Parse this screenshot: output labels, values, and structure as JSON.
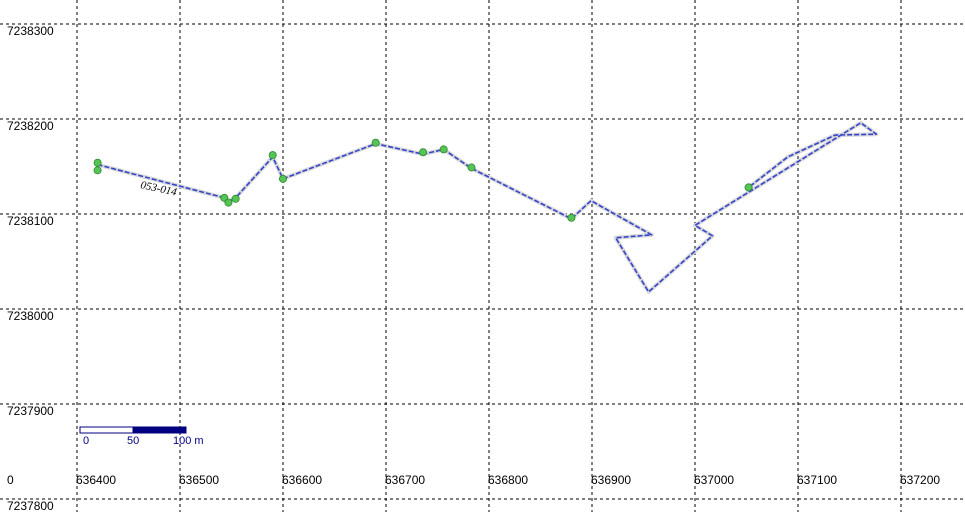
{
  "map": {
    "x_ticks": [
      "636400",
      "636500",
      "636600",
      "636700",
      "636800",
      "636900",
      "637000",
      "637100",
      "637200"
    ],
    "y_ticks": [
      "7238300",
      "7238200",
      "7238100",
      "7238000",
      "7237900",
      "7237800"
    ],
    "origin_label": "0",
    "x_range": [
      636394,
      637242
    ],
    "y_range": [
      7237793,
      7238325
    ],
    "grid": "dashed",
    "colors": {
      "background": "#ffffff",
      "grid": "#000000",
      "track": "#3344cc",
      "track_halo": "#d8d8d8",
      "point": "#55c455",
      "point_outline": "#2e8a2e",
      "scale_bar": "#000080"
    },
    "track": {
      "label": "053-014",
      "path": [
        [
          636420,
          7238152
        ],
        [
          636543,
          7238117
        ],
        [
          636547,
          7238113
        ],
        [
          636554,
          7238117
        ],
        [
          636590,
          7238160
        ],
        [
          636600,
          7238137
        ],
        [
          636690,
          7238174
        ],
        [
          636736,
          7238163
        ],
        [
          636756,
          7238168
        ],
        [
          636783,
          7238148
        ],
        [
          636880,
          7238095
        ],
        [
          636899,
          7238114
        ],
        [
          636958,
          7238078
        ],
        [
          636923,
          7238075
        ],
        [
          636955,
          7238018
        ],
        [
          637017,
          7238077
        ],
        [
          637000,
          7238088
        ],
        [
          637161,
          7238196
        ],
        [
          637176,
          7238184
        ],
        [
          637136,
          7238183
        ],
        [
          637090,
          7238160
        ],
        [
          637052,
          7238128
        ]
      ],
      "points": [
        [
          636420,
          7238154
        ],
        [
          636420,
          7238146
        ],
        [
          636543,
          7238117
        ],
        [
          636547,
          7238112
        ],
        [
          636554,
          7238116
        ],
        [
          636590,
          7238162
        ],
        [
          636600,
          7238137
        ],
        [
          636690,
          7238175
        ],
        [
          636736,
          7238165
        ],
        [
          636756,
          7238168
        ],
        [
          636783,
          7238149
        ],
        [
          636880,
          7238096
        ],
        [
          637052,
          7238128
        ]
      ]
    },
    "scale_bar": {
      "labels": [
        "0",
        "50",
        "100 m"
      ]
    }
  }
}
